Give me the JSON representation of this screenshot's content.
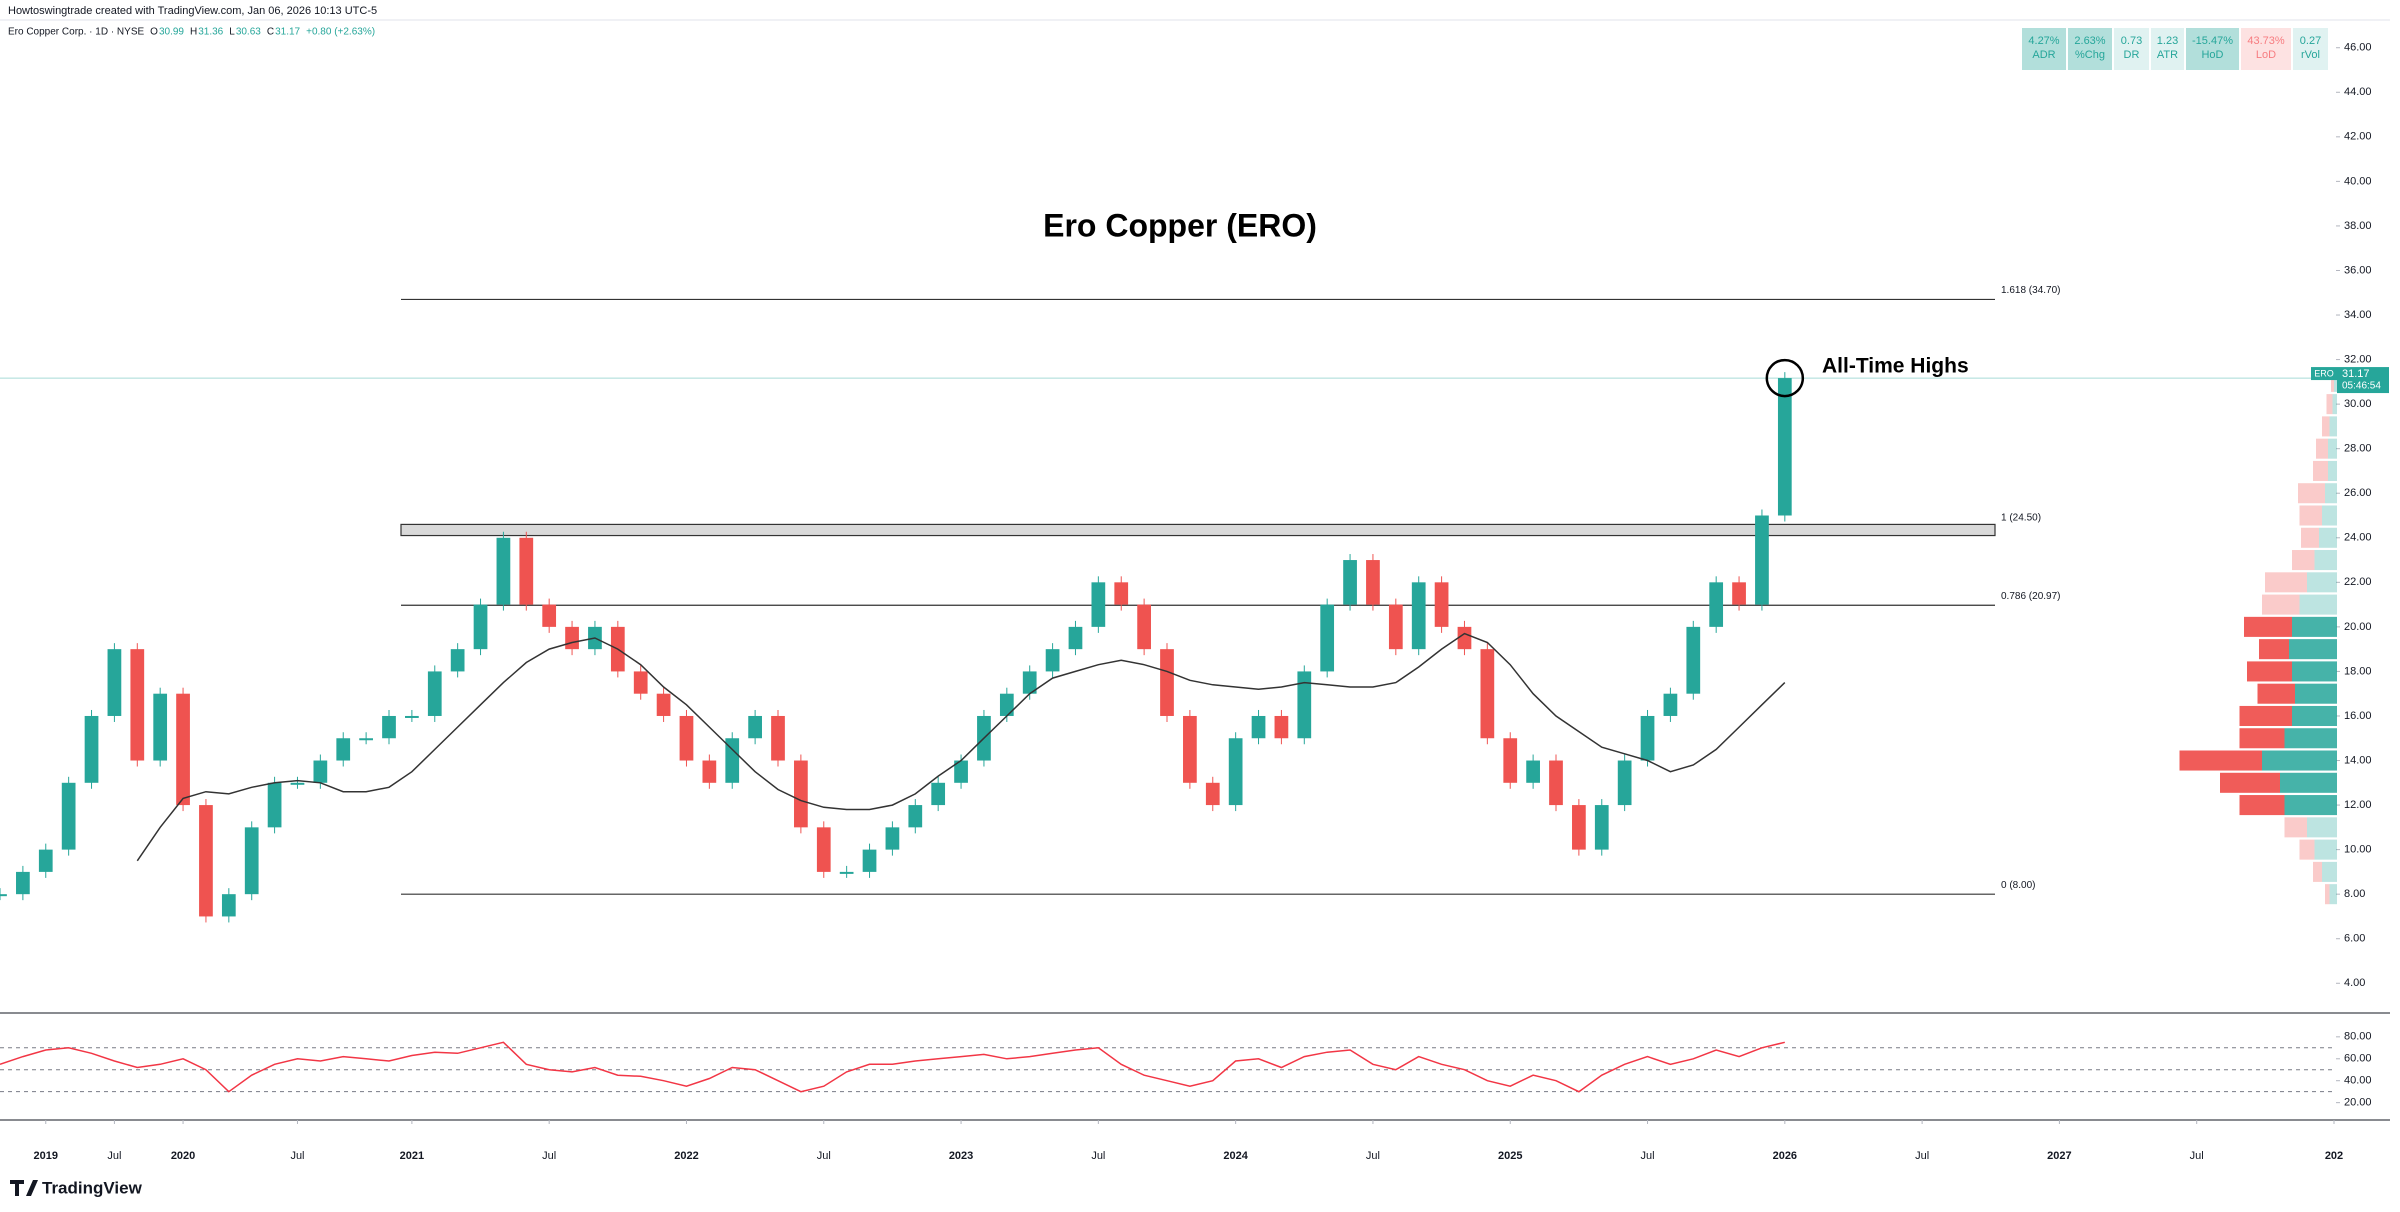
{
  "header": "Howtoswingtrade created with TradingView.com, Jan 06, 2026 10:13 UTC-5",
  "brand": "TradingView",
  "chart_data": {
    "type": "candlestick",
    "title": "Ero Copper (ERO)",
    "annotation": "All-Time Highs",
    "legend": {
      "symbol": "Ero Copper Corp. · 1D · NYSE",
      "o": "O",
      "open": 30.99,
      "h": "H",
      "high": 31.36,
      "l": "L",
      "low": 30.63,
      "c": "C",
      "close": 31.17,
      "change": "+0.80 (+2.63%)"
    },
    "stats": [
      {
        "value": "4.27%",
        "label": "ADR",
        "bg": "#b2dfdb",
        "color": "#26a69a"
      },
      {
        "value": "2.63%",
        "label": "%Chg",
        "bg": "#b2dfdb",
        "color": "#26a69a"
      },
      {
        "value": "0.73",
        "label": "DR",
        "bg": "#e0f2f1",
        "color": "#26a69a"
      },
      {
        "value": "1.23",
        "label": "ATR",
        "bg": "#e0f2f1",
        "color": "#26a69a"
      },
      {
        "value": "-15.47%",
        "label": "HoD",
        "bg": "#b2dfdb",
        "color": "#26a69a"
      },
      {
        "value": "43.73%",
        "label": "LoD",
        "bg": "#fde2e2",
        "color": "#f77c80"
      },
      {
        "value": "0.27",
        "label": "rVol",
        "bg": "#e0f2f1",
        "color": "#26a69a"
      }
    ],
    "last": {
      "symbol": "ERO",
      "price": 31.17,
      "countdown": "05:46:54",
      "color": "#26a69a"
    },
    "up_color": "#26a69a",
    "down_color": "#ef5350",
    "x": [
      0,
      1,
      2,
      3,
      4,
      5,
      6,
      7,
      8,
      9,
      10,
      11,
      12,
      13,
      14,
      15,
      16,
      17,
      18,
      19,
      20,
      21,
      22,
      23,
      24,
      25,
      26,
      27,
      28,
      29,
      30,
      31,
      32,
      33,
      34,
      35,
      36,
      37,
      38,
      39,
      40,
      41,
      42,
      43,
      44,
      45,
      46,
      47,
      48,
      49,
      50,
      51,
      52,
      53,
      54,
      55,
      56,
      57,
      58,
      59,
      60,
      61,
      62,
      63,
      64,
      65,
      66,
      67,
      68,
      69,
      70,
      71,
      72,
      73,
      74,
      75,
      76,
      77,
      78
    ],
    "values": [
      8,
      9,
      10,
      13,
      16,
      19,
      14,
      17,
      12,
      7,
      8,
      11,
      13,
      13,
      14,
      15,
      15,
      16,
      16,
      18,
      19,
      21,
      24,
      21,
      20,
      19,
      20,
      18,
      17,
      16,
      14,
      13,
      15,
      16,
      14,
      11,
      9,
      9,
      10,
      11,
      12,
      13,
      14,
      16,
      17,
      18,
      19,
      20,
      22,
      21,
      19,
      16,
      13,
      12,
      15,
      16,
      15,
      18,
      21,
      23,
      21,
      19,
      22,
      20,
      19,
      15,
      13,
      14,
      12,
      10,
      12,
      14,
      16,
      17,
      20,
      22,
      21,
      25,
      31.17
    ],
    "ma": {
      "color": "#333333",
      "values": [
        null,
        null,
        null,
        null,
        null,
        null,
        9.5,
        11,
        12.3,
        12.6,
        12.5,
        12.8,
        13,
        13.1,
        13,
        12.6,
        12.6,
        12.8,
        13.5,
        14.5,
        15.5,
        16.5,
        17.5,
        18.4,
        19,
        19.3,
        19.5,
        19,
        18.3,
        17.3,
        16.5,
        15.5,
        14.5,
        13.5,
        12.7,
        12.2,
        11.9,
        11.8,
        11.8,
        12,
        12.5,
        13.3,
        14,
        15,
        16,
        17,
        17.7,
        18,
        18.3,
        18.5,
        18.3,
        18,
        17.6,
        17.4,
        17.3,
        17.2,
        17.3,
        17.5,
        17.4,
        17.3,
        17.3,
        17.5,
        18.2,
        19,
        19.7,
        19.3,
        18.3,
        17,
        16,
        15.3,
        14.6,
        14.3,
        14,
        13.5,
        13.8,
        14.5,
        15.5,
        16.5,
        17.5
      ]
    },
    "xlim": [
      0,
      102
    ],
    "xticks": [
      {
        "value": 2,
        "label": "2019"
      },
      {
        "value": 5,
        "label": "Jul"
      },
      {
        "value": 8,
        "label": "2020"
      },
      {
        "value": 13,
        "label": "Jul"
      },
      {
        "value": 18,
        "label": "2021"
      },
      {
        "value": 24,
        "label": "Jul"
      },
      {
        "value": 30,
        "label": "2022"
      },
      {
        "value": 36,
        "label": "Jul"
      },
      {
        "value": 42,
        "label": "2023"
      },
      {
        "value": 48,
        "label": "Jul"
      },
      {
        "value": 54,
        "label": "2024"
      },
      {
        "value": 60,
        "label": "Jul"
      },
      {
        "value": 66,
        "label": "2025"
      },
      {
        "value": 72,
        "label": "Jul"
      },
      {
        "value": 78,
        "label": "2026"
      },
      {
        "value": 84,
        "label": "Jul"
      },
      {
        "value": 90,
        "label": "2027"
      },
      {
        "value": 96,
        "label": "Jul"
      },
      {
        "value": 102,
        "label": "202"
      }
    ],
    "ylim": [
      2.8,
      47.2
    ],
    "yticks": [
      {
        "value": 4,
        "label": "4.00"
      },
      {
        "value": 6,
        "label": "6.00"
      },
      {
        "value": 8,
        "label": "8.00"
      },
      {
        "value": 10,
        "label": "10.00"
      },
      {
        "value": 12,
        "label": "12.00"
      },
      {
        "value": 14,
        "label": "14.00"
      },
      {
        "value": 16,
        "label": "16.00"
      },
      {
        "value": 18,
        "label": "18.00"
      },
      {
        "value": 20,
        "label": "20.00"
      },
      {
        "value": 22,
        "label": "22.00"
      },
      {
        "value": 24,
        "label": "24.00"
      },
      {
        "value": 26,
        "label": "26.00"
      },
      {
        "value": 28,
        "label": "28.00"
      },
      {
        "value": 30,
        "label": "30.00"
      },
      {
        "value": 32,
        "label": "32.00"
      },
      {
        "value": 34,
        "label": "34.00"
      },
      {
        "value": 36,
        "label": "36.00"
      },
      {
        "value": 38,
        "label": "38.00"
      },
      {
        "value": 40,
        "label": "40.00"
      },
      {
        "value": 42,
        "label": "42.00"
      },
      {
        "value": 44,
        "label": "44.00"
      },
      {
        "value": 46,
        "label": "46.00"
      }
    ],
    "fib_levels": [
      {
        "value": 34.7,
        "label": "1.618 (34.70)"
      },
      {
        "value": 24.5,
        "label": "1 (24.50)"
      },
      {
        "value": 20.97,
        "label": "0.786 (20.97)"
      },
      {
        "value": 8,
        "label": "0 (8.00)"
      }
    ],
    "zone": [
      24.1,
      24.6
    ],
    "volume_profile": {
      "levels": [
        8,
        9,
        10,
        11,
        12,
        13,
        14,
        15,
        16,
        17,
        18,
        19,
        20,
        21,
        22,
        23,
        24,
        25,
        26,
        27,
        28,
        29,
        30,
        31
      ],
      "up": [
        5,
        10,
        15,
        20,
        35,
        38,
        50,
        35,
        30,
        28,
        30,
        32,
        30,
        25,
        20,
        15,
        12,
        10,
        8,
        6,
        6,
        5,
        3,
        2
      ],
      "down": [
        3,
        6,
        10,
        15,
        30,
        40,
        55,
        30,
        35,
        25,
        30,
        20,
        32,
        25,
        28,
        15,
        12,
        15,
        18,
        10,
        8,
        5,
        4,
        2
      ],
      "value_area": [
        12,
        20
      ]
    },
    "rsi": {
      "color": "#f23645",
      "ylim": [
        6,
        99
      ],
      "levels": [
        30,
        50,
        70
      ],
      "yticks": [
        {
          "value": 20,
          "label": "20.00"
        },
        {
          "value": 40,
          "label": "40.00"
        },
        {
          "value": 60,
          "label": "60.00"
        },
        {
          "value": 80,
          "label": "80.00"
        }
      ],
      "values": [
        55,
        62,
        68,
        70,
        65,
        58,
        52,
        55,
        60,
        50,
        30,
        45,
        55,
        60,
        58,
        62,
        60,
        58,
        63,
        66,
        65,
        70,
        75,
        55,
        50,
        48,
        52,
        45,
        44,
        40,
        35,
        42,
        52,
        50,
        40,
        30,
        35,
        48,
        55,
        55,
        58,
        60,
        62,
        64,
        60,
        62,
        65,
        68,
        70,
        55,
        45,
        40,
        35,
        40,
        58,
        60,
        52,
        62,
        66,
        68,
        55,
        50,
        62,
        55,
        50,
        40,
        35,
        45,
        40,
        30,
        45,
        55,
        62,
        55,
        60,
        68,
        62,
        70,
        75
      ]
    }
  }
}
